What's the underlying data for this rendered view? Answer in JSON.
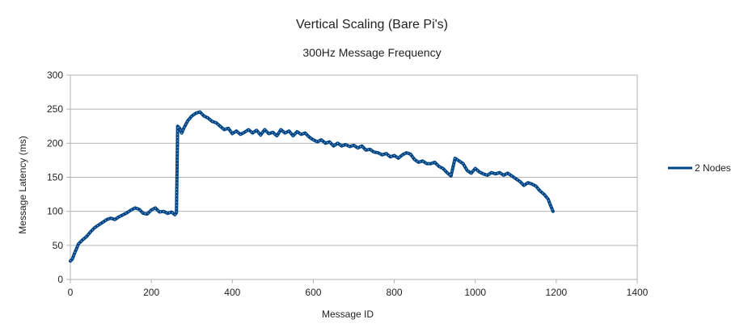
{
  "chart_data": {
    "type": "line",
    "title": "Vertical Scaling (Bare Pi's)",
    "subtitle": "300Hz Message Frequency",
    "xlabel": "Message ID",
    "ylabel": "Message Latency (ms)",
    "xlim": [
      0,
      1400
    ],
    "ylim": [
      0,
      300
    ],
    "xticks": [
      "0",
      "200",
      "400",
      "600",
      "800",
      "1000",
      "1200",
      "1400"
    ],
    "yticks": [
      "0",
      "50",
      "100",
      "150",
      "200",
      "250",
      "300"
    ],
    "grid": "horizontal",
    "legend": "right",
    "series": [
      {
        "name": "2 Nodes",
        "color": "#004586",
        "points": [
          [
            0,
            27
          ],
          [
            5,
            30
          ],
          [
            10,
            38
          ],
          [
            15,
            45
          ],
          [
            20,
            52
          ],
          [
            30,
            58
          ],
          [
            40,
            63
          ],
          [
            50,
            70
          ],
          [
            60,
            76
          ],
          [
            70,
            80
          ],
          [
            80,
            84
          ],
          [
            90,
            88
          ],
          [
            100,
            90
          ],
          [
            110,
            88
          ],
          [
            120,
            92
          ],
          [
            130,
            95
          ],
          [
            140,
            98
          ],
          [
            150,
            102
          ],
          [
            160,
            105
          ],
          [
            170,
            103
          ],
          [
            180,
            97
          ],
          [
            190,
            96
          ],
          [
            200,
            102
          ],
          [
            210,
            105
          ],
          [
            220,
            99
          ],
          [
            230,
            100
          ],
          [
            240,
            97
          ],
          [
            250,
            99
          ],
          [
            258,
            95
          ],
          [
            262,
            98
          ],
          [
            265,
            225
          ],
          [
            270,
            222
          ],
          [
            275,
            215
          ],
          [
            280,
            222
          ],
          [
            290,
            233
          ],
          [
            300,
            240
          ],
          [
            310,
            244
          ],
          [
            320,
            246
          ],
          [
            330,
            240
          ],
          [
            340,
            237
          ],
          [
            350,
            232
          ],
          [
            360,
            230
          ],
          [
            370,
            225
          ],
          [
            380,
            220
          ],
          [
            390,
            222
          ],
          [
            400,
            214
          ],
          [
            410,
            218
          ],
          [
            420,
            213
          ],
          [
            430,
            216
          ],
          [
            440,
            220
          ],
          [
            450,
            215
          ],
          [
            460,
            219
          ],
          [
            470,
            212
          ],
          [
            480,
            220
          ],
          [
            490,
            214
          ],
          [
            500,
            216
          ],
          [
            510,
            211
          ],
          [
            520,
            220
          ],
          [
            530,
            215
          ],
          [
            540,
            218
          ],
          [
            550,
            211
          ],
          [
            560,
            217
          ],
          [
            570,
            213
          ],
          [
            580,
            215
          ],
          [
            590,
            209
          ],
          [
            600,
            205
          ],
          [
            610,
            202
          ],
          [
            620,
            205
          ],
          [
            630,
            200
          ],
          [
            640,
            202
          ],
          [
            650,
            196
          ],
          [
            660,
            200
          ],
          [
            670,
            196
          ],
          [
            680,
            198
          ],
          [
            690,
            195
          ],
          [
            700,
            197
          ],
          [
            710,
            193
          ],
          [
            720,
            196
          ],
          [
            730,
            190
          ],
          [
            740,
            191
          ],
          [
            750,
            187
          ],
          [
            760,
            186
          ],
          [
            770,
            183
          ],
          [
            780,
            185
          ],
          [
            790,
            180
          ],
          [
            800,
            182
          ],
          [
            810,
            178
          ],
          [
            820,
            183
          ],
          [
            830,
            186
          ],
          [
            840,
            184
          ],
          [
            850,
            176
          ],
          [
            860,
            172
          ],
          [
            870,
            174
          ],
          [
            880,
            170
          ],
          [
            890,
            170
          ],
          [
            900,
            172
          ],
          [
            910,
            166
          ],
          [
            920,
            163
          ],
          [
            930,
            157
          ],
          [
            940,
            152
          ],
          [
            945,
            165
          ],
          [
            950,
            178
          ],
          [
            960,
            174
          ],
          [
            970,
            170
          ],
          [
            980,
            160
          ],
          [
            990,
            156
          ],
          [
            1000,
            163
          ],
          [
            1010,
            158
          ],
          [
            1020,
            155
          ],
          [
            1030,
            153
          ],
          [
            1040,
            157
          ],
          [
            1050,
            155
          ],
          [
            1060,
            157
          ],
          [
            1070,
            153
          ],
          [
            1080,
            156
          ],
          [
            1090,
            152
          ],
          [
            1100,
            148
          ],
          [
            1110,
            144
          ],
          [
            1120,
            138
          ],
          [
            1130,
            142
          ],
          [
            1140,
            140
          ],
          [
            1150,
            137
          ],
          [
            1160,
            130
          ],
          [
            1170,
            125
          ],
          [
            1180,
            118
          ],
          [
            1185,
            110
          ],
          [
            1192,
            100
          ]
        ]
      }
    ]
  }
}
